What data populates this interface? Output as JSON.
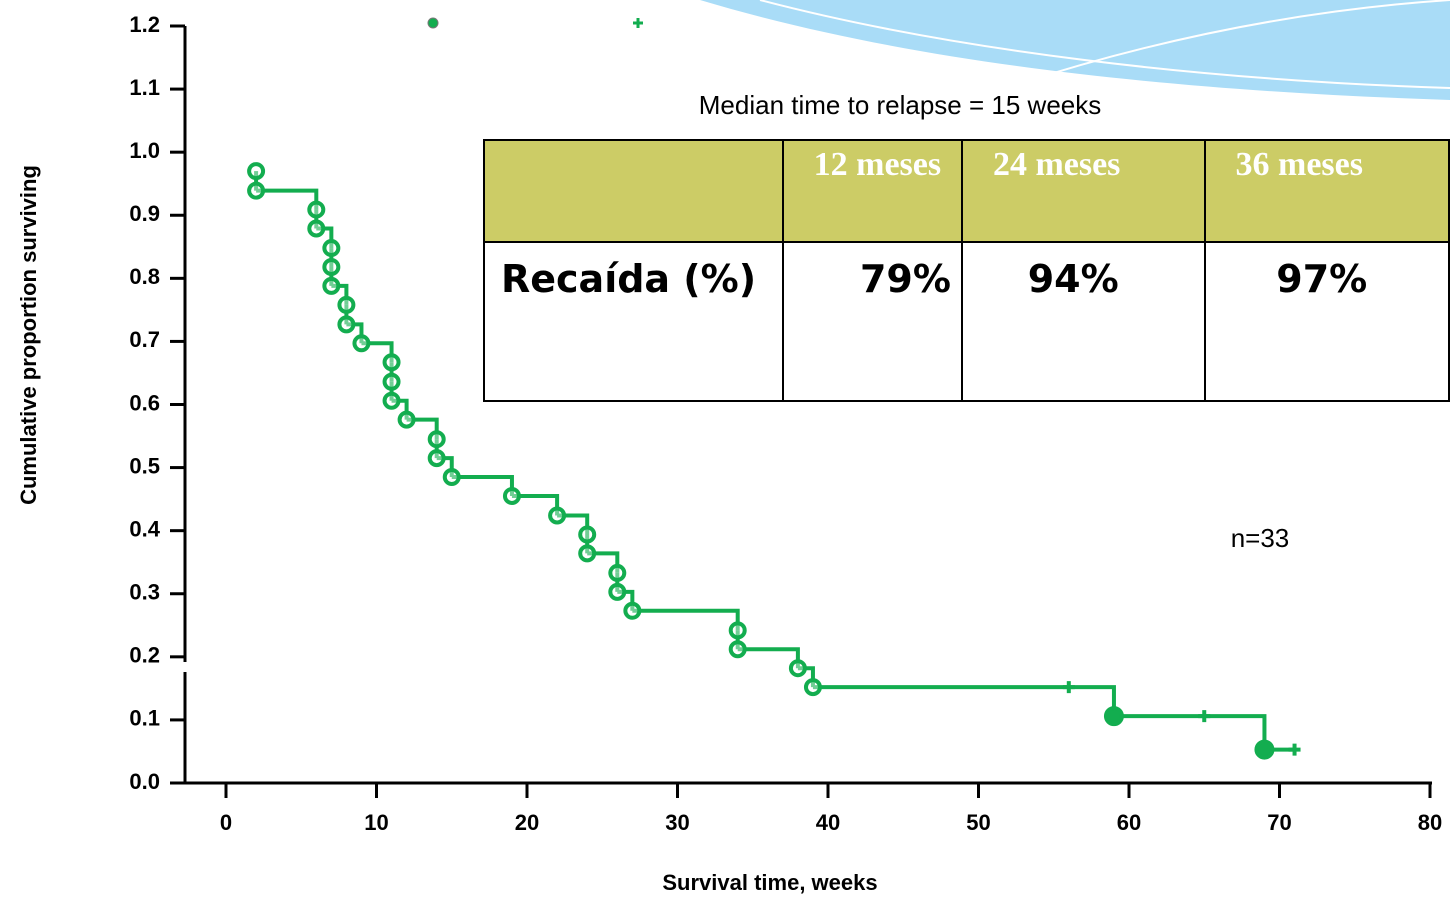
{
  "chart_data": {
    "type": "step",
    "x_label": "Survival time, weeks",
    "y_label": "Cumulative proportion surviving",
    "annotation": "Median time to relapse = 15 weeks",
    "n_label": "n=33",
    "color": "#13ad4f",
    "xlim": [
      0,
      80
    ],
    "xticks": [
      0,
      10,
      20,
      30,
      40,
      50,
      60,
      70,
      80
    ],
    "ylim": [
      0,
      1.2
    ],
    "yticks": [
      {
        "value": 0,
        "label": "0.0"
      },
      0.1,
      0.2,
      0.3,
      0.4,
      0.5,
      0.6,
      0.7,
      0.8,
      0.9,
      {
        "value": 1,
        "label": "1.0"
      },
      1.1,
      1.2
    ],
    "events": {
      "x": [
        2,
        2,
        6,
        6,
        7,
        7,
        7,
        8,
        8,
        9,
        11,
        11,
        11,
        12,
        14,
        14,
        15,
        19,
        22,
        24,
        24,
        26,
        26,
        27,
        34,
        34,
        38,
        39,
        59,
        69
      ],
      "values": [
        0.97,
        0.939,
        0.909,
        0.879,
        0.848,
        0.818,
        0.788,
        0.758,
        0.727,
        0.697,
        0.667,
        0.636,
        0.606,
        0.576,
        0.545,
        0.515,
        0.485,
        0.455,
        0.424,
        0.394,
        0.364,
        0.333,
        0.303,
        0.273,
        0.242,
        0.212,
        0.182,
        0.152,
        0.106,
        0.053
      ]
    },
    "censored": {
      "x": [
        56,
        65,
        71
      ],
      "values": [
        0.152,
        0.106,
        0.053
      ]
    }
  },
  "table": {
    "header": [
      "12 meses",
      "24 meses",
      "36 meses"
    ],
    "row_label": "Recaída (%)",
    "row": [
      "79%",
      "94%",
      "97%"
    ]
  }
}
